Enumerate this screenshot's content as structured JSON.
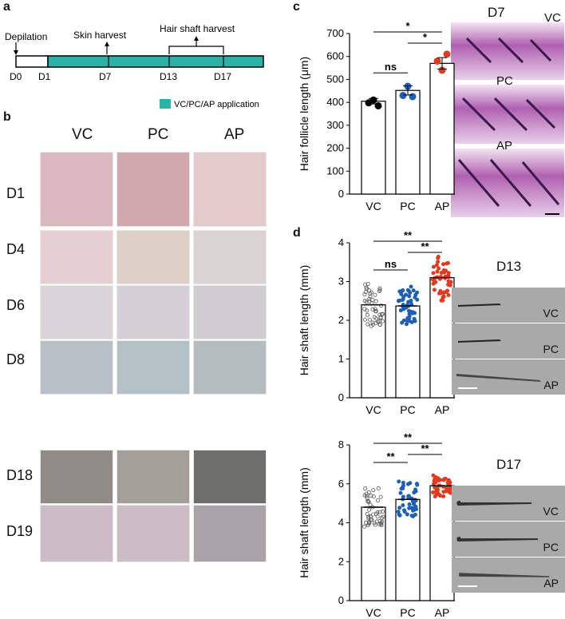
{
  "panels": {
    "a": "a",
    "b": "b",
    "c": "c",
    "d": "d"
  },
  "timeline": {
    "depilation": "Depilation",
    "skin_harvest": "Skin harvest",
    "hair_shaft_harvest": "Hair shaft harvest",
    "days": [
      "D0",
      "D1",
      "D7",
      "D13",
      "D17"
    ],
    "legend": "VC/PC/AP application",
    "color": "#2ab3a6"
  },
  "grid": {
    "columns": [
      "VC",
      "PC",
      "AP"
    ],
    "rows": [
      "D1",
      "D4",
      "D6",
      "D8",
      "D18",
      "D19"
    ]
  },
  "histology": {
    "title": "D7",
    "labels": [
      "VC",
      "PC",
      "AP"
    ]
  },
  "strips_d13": {
    "title": "D13",
    "labels": [
      "VC",
      "PC",
      "AP"
    ]
  },
  "strips_d17": {
    "title": "D17",
    "labels": [
      "VC",
      "PC",
      "AP"
    ]
  },
  "chart_data": [
    {
      "type": "bar",
      "panel": "c",
      "categories": [
        "VC",
        "PC",
        "AP"
      ],
      "values": [
        405,
        452,
        570
      ],
      "errors": [
        12,
        20,
        25
      ],
      "points": [
        [
          398,
          410,
          385
        ],
        [
          430,
          470,
          425
        ],
        [
          580,
          540,
          610
        ]
      ],
      "ylabel": "Hair follicle length (μm)",
      "ylim": [
        0,
        700
      ],
      "yticks": [
        0,
        100,
        200,
        300,
        400,
        500,
        600,
        700
      ],
      "point_colors": [
        "#000000",
        "#1f5fb4",
        "#e03a20"
      ],
      "significance": [
        {
          "from": "VC",
          "to": "PC",
          "label": "ns"
        },
        {
          "from": "VC",
          "to": "AP",
          "label": "*"
        },
        {
          "from": "PC",
          "to": "AP",
          "label": "*"
        }
      ]
    },
    {
      "type": "bar",
      "panel": "d-top",
      "categories": [
        "VC",
        "PC",
        "AP"
      ],
      "values": [
        2.4,
        2.37,
        3.1
      ],
      "ylabel": "Hair shaft length (mm)",
      "ylim": [
        0,
        4
      ],
      "yticks": [
        0,
        1,
        2,
        3,
        4
      ],
      "point_colors": [
        "#555555",
        "#1f5fb4",
        "#e03a20"
      ],
      "significance": [
        {
          "from": "VC",
          "to": "PC",
          "label": "ns"
        },
        {
          "from": "VC",
          "to": "AP",
          "label": "**"
        },
        {
          "from": "PC",
          "to": "AP",
          "label": "**"
        }
      ]
    },
    {
      "type": "bar",
      "panel": "d-bottom",
      "categories": [
        "VC",
        "PC",
        "AP"
      ],
      "values": [
        4.8,
        5.2,
        5.9
      ],
      "ylabel": "Hair shaft length (mm)",
      "ylim": [
        0,
        8
      ],
      "yticks": [
        0,
        2,
        4,
        6,
        8
      ],
      "point_colors": [
        "#555555",
        "#1f5fb4",
        "#e03a20"
      ],
      "significance": [
        {
          "from": "VC",
          "to": "PC",
          "label": "**"
        },
        {
          "from": "VC",
          "to": "AP",
          "label": "**"
        },
        {
          "from": "PC",
          "to": "AP",
          "label": "**"
        }
      ]
    }
  ]
}
